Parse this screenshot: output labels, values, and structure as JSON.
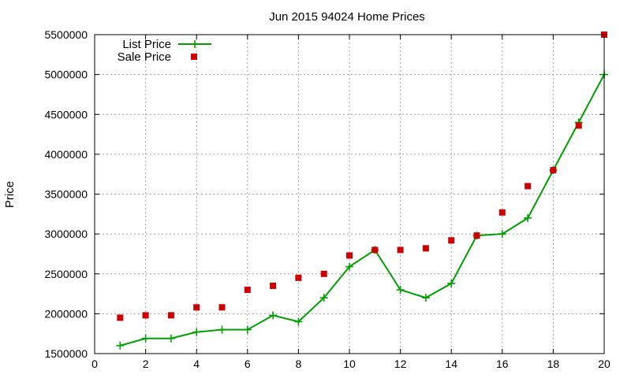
{
  "chart_data": {
    "type": "line",
    "title": "Jun 2015 94024 Home Prices",
    "xlabel": "",
    "ylabel": "Price",
    "xlim": [
      0,
      20
    ],
    "ylim": [
      1500000,
      5500000
    ],
    "xticks": [
      0,
      2,
      4,
      6,
      8,
      10,
      12,
      14,
      16,
      18,
      20
    ],
    "yticks": [
      1500000,
      2000000,
      2500000,
      3000000,
      3500000,
      4000000,
      4500000,
      5000000,
      5500000
    ],
    "grid": true,
    "legend_position": "top-left",
    "x": [
      1,
      2,
      3,
      4,
      5,
      6,
      7,
      8,
      9,
      10,
      11,
      12,
      13,
      14,
      15,
      16,
      17,
      18,
      19,
      20
    ],
    "series": [
      {
        "name": "List Price",
        "style": "line-with-plus-markers",
        "color": "#00a000",
        "values": [
          1600000,
          1690000,
          1690000,
          1770000,
          1800000,
          1800000,
          1980000,
          1900000,
          2200000,
          2590000,
          2800000,
          2300000,
          2200000,
          2380000,
          2980000,
          3000000,
          3200000,
          3800000,
          4400000,
          5000000
        ]
      },
      {
        "name": "Sale Price",
        "style": "square-markers",
        "color": "#cc0000",
        "values": [
          1950000,
          1980000,
          1980000,
          2080000,
          2080000,
          2300000,
          2350000,
          2450000,
          2500000,
          2730000,
          2800000,
          2800000,
          2820000,
          2920000,
          2980000,
          3270000,
          3600000,
          3800000,
          4360000,
          5500000
        ]
      }
    ]
  }
}
